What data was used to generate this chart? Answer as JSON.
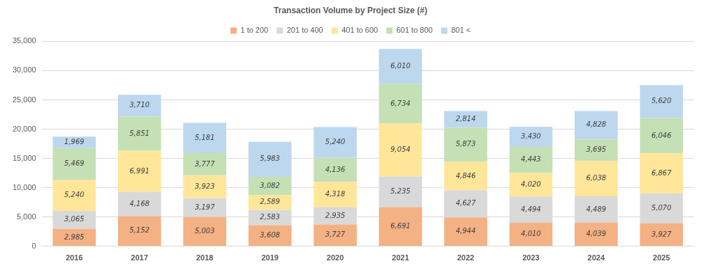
{
  "chart_data": {
    "type": "bar",
    "stacked": true,
    "title": "Transaction Volume by Project Size (#)",
    "categories": [
      "2016",
      "2017",
      "2018",
      "2019",
      "2020",
      "2021",
      "2022",
      "2023",
      "2024",
      "2025"
    ],
    "series": [
      {
        "name": "1 to 200",
        "color": "#f4b183",
        "values": [
          2985,
          5152,
          5003,
          3608,
          3727,
          6691,
          4944,
          4010,
          4039,
          3927
        ],
        "value_labels": [
          "2,985",
          "5,152",
          "5,003",
          "3,608",
          "3,727",
          "6,691",
          "4,944",
          "4,010",
          "4,039",
          "3,927"
        ]
      },
      {
        "name": "201 to 400",
        "color": "#d9d9d9",
        "values": [
          3065,
          4168,
          3197,
          2583,
          2935,
          5235,
          4627,
          4494,
          4489,
          5070
        ],
        "value_labels": [
          "3,065",
          "4,168",
          "3,197",
          "2,583",
          "2,935",
          "5,235",
          "4,627",
          "4,494",
          "4,489",
          "5,070"
        ]
      },
      {
        "name": "401 to 600",
        "color": "#ffe699",
        "values": [
          5240,
          6991,
          3923,
          2589,
          4318,
          9054,
          4846,
          4020,
          6038,
          6867
        ],
        "value_labels": [
          "5,240",
          "6,991",
          "3,923",
          "2,589",
          "4,318",
          "9,054",
          "4,846",
          "4,020",
          "6,038",
          "6,867"
        ]
      },
      {
        "name": "601 to 800",
        "color": "#c5e0b4",
        "values": [
          5469,
          5851,
          3777,
          3082,
          4136,
          6734,
          5873,
          4443,
          3695,
          6046
        ],
        "value_labels": [
          "5,469",
          "5,851",
          "3,777",
          "3,082",
          "4,136",
          "6,734",
          "5,873",
          "4,443",
          "3,695",
          "6,046"
        ]
      },
      {
        "name": "801 <",
        "color": "#bdd7ee",
        "values": [
          1969,
          3710,
          5181,
          5983,
          5240,
          6010,
          2814,
          3430,
          4828,
          5620
        ],
        "value_labels": [
          "1,969",
          "3,710",
          "5,181",
          "5,983",
          "5,240",
          "6,010",
          "2,814",
          "3,430",
          "4,828",
          "5,620"
        ]
      }
    ],
    "ylim": [
      0,
      35000
    ],
    "yticks": [
      0,
      {
        "value": 5000,
        "label": "5,000"
      },
      {
        "value": 10000,
        "label": "10,000"
      },
      {
        "value": 15000,
        "label": "15,000"
      },
      {
        "value": 20000,
        "label": "20,000"
      },
      {
        "value": 25000,
        "label": "25,000"
      },
      {
        "value": 30000,
        "label": "30,000"
      },
      {
        "value": 35000,
        "label": "35,000"
      }
    ],
    "grid": "y",
    "legend": "top"
  }
}
